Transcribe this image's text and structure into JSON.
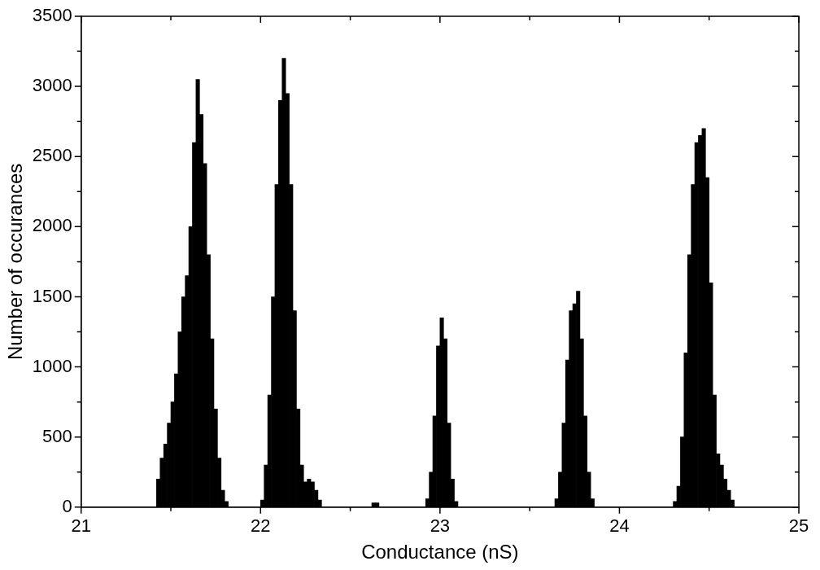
{
  "chart_data": {
    "type": "histogram",
    "xlabel": "Conductance (nS)",
    "ylabel": "Number of occurances",
    "color": "#000000",
    "bins": [
      21.4,
      21.42,
      21.44,
      21.46,
      21.48,
      21.5,
      21.52,
      21.54,
      21.56,
      21.58,
      21.6,
      21.62,
      21.64,
      21.66,
      21.68,
      21.7,
      21.72,
      21.74,
      21.76,
      21.78,
      21.8,
      21.82,
      21.84,
      21.86,
      21.88,
      21.9,
      21.92,
      21.94,
      21.96,
      21.98,
      22.0,
      22.02,
      22.04,
      22.06,
      22.08,
      22.1,
      22.12,
      22.14,
      22.16,
      22.18,
      22.2,
      22.22,
      22.24,
      22.26,
      22.28,
      22.3,
      22.32,
      22.34,
      22.36,
      22.38,
      22.4,
      22.42,
      22.44,
      22.46,
      22.48,
      22.5,
      22.52,
      22.54,
      22.56,
      22.58,
      22.6,
      22.62,
      22.64,
      22.66,
      22.68,
      22.7,
      22.72,
      22.74,
      22.76,
      22.78,
      22.8,
      22.82,
      22.84,
      22.86,
      22.88,
      22.9,
      22.92,
      22.94,
      22.96,
      22.98,
      23.0,
      23.02,
      23.04,
      23.06,
      23.08,
      23.1,
      23.12,
      23.14,
      23.16,
      23.18,
      23.2,
      23.22,
      23.24,
      23.26,
      23.28,
      23.3,
      23.32,
      23.34,
      23.36,
      23.38,
      23.4,
      23.42,
      23.44,
      23.46,
      23.48,
      23.5,
      23.52,
      23.54,
      23.56,
      23.58,
      23.6,
      23.62,
      23.64,
      23.66,
      23.68,
      23.7,
      23.72,
      23.74,
      23.76,
      23.78,
      23.8,
      23.82,
      23.84,
      23.86,
      23.88,
      23.9,
      23.92,
      23.94,
      23.96,
      23.98,
      24.0,
      24.02,
      24.04,
      24.06,
      24.08,
      24.1,
      24.12,
      24.14,
      24.16,
      24.18,
      24.2,
      24.22,
      24.24,
      24.26,
      24.28,
      24.3,
      24.32,
      24.34,
      24.36,
      24.38,
      24.4,
      24.42,
      24.44,
      24.46,
      24.48,
      24.5,
      24.52,
      24.54,
      24.56,
      24.58,
      24.6,
      24.62,
      24.64,
      24.66,
      24.68,
      24.7
    ],
    "values": [
      0,
      200,
      350,
      450,
      600,
      750,
      950,
      1250,
      1500,
      1650,
      2000,
      2600,
      3050,
      2800,
      2450,
      1800,
      1200,
      700,
      350,
      120,
      40,
      0,
      0,
      0,
      0,
      0,
      0,
      0,
      0,
      0,
      50,
      300,
      800,
      1500,
      2300,
      2900,
      3200,
      2950,
      2300,
      1400,
      700,
      300,
      180,
      200,
      180,
      120,
      50,
      0,
      0,
      0,
      0,
      0,
      0,
      0,
      0,
      0,
      0,
      0,
      0,
      0,
      0,
      30,
      30,
      0,
      0,
      0,
      0,
      0,
      0,
      0,
      0,
      0,
      0,
      0,
      0,
      0,
      60,
      250,
      650,
      1150,
      1350,
      1200,
      600,
      200,
      40,
      0,
      0,
      0,
      0,
      0,
      0,
      0,
      0,
      0,
      0,
      0,
      0,
      0,
      0,
      0,
      0,
      0,
      0,
      0,
      0,
      0,
      0,
      0,
      0,
      0,
      0,
      0,
      60,
      250,
      600,
      1050,
      1400,
      1450,
      1540,
      1200,
      650,
      250,
      60,
      0,
      0,
      0,
      0,
      0,
      0,
      0,
      0,
      0,
      0,
      0,
      0,
      0,
      0,
      0,
      0,
      0,
      0,
      0,
      0,
      0,
      0,
      40,
      150,
      500,
      1100,
      1800,
      2300,
      2600,
      2650,
      2700,
      2350,
      1600,
      800,
      380,
      300,
      200,
      120,
      50,
      0,
      0,
      0
    ],
    "xlim": [
      21,
      25
    ],
    "xticks": [
      21,
      {
        "value": 21.5,
        "label": null
      },
      22,
      {
        "value": 22.5,
        "label": null
      },
      23,
      {
        "value": 23.5,
        "label": null
      },
      24,
      {
        "value": 24.5,
        "label": null
      },
      25
    ],
    "ylim": [
      0,
      3500
    ],
    "yticks": [
      0,
      {
        "value": 250,
        "label": null
      },
      500,
      {
        "value": 750,
        "label": null
      },
      1000,
      {
        "value": 1250,
        "label": null
      },
      1500,
      {
        "value": 1750,
        "label": null
      },
      2000,
      {
        "value": 2250,
        "label": null
      },
      2500,
      {
        "value": 2750,
        "label": null
      },
      3000,
      {
        "value": 3250,
        "label": null
      },
      3500
    ]
  }
}
